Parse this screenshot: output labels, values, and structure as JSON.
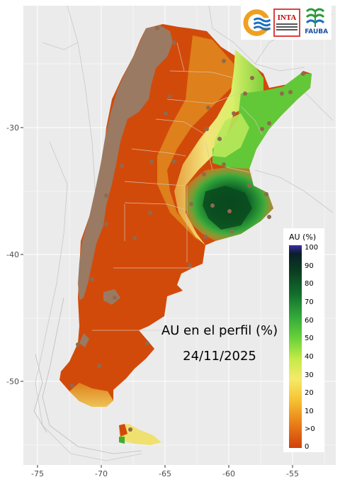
{
  "map": {
    "title_line1": "AU en el perfil (%)",
    "title_line2": "24/11/2025",
    "x_ticks": [
      "-75",
      "-70",
      "-65",
      "-60",
      "-55"
    ],
    "y_ticks": [
      "-30",
      "-40",
      "-50"
    ],
    "colors": {
      "panel_bg": "#ebebeb",
      "grid": "#ffffff",
      "border": "#c0c0c0",
      "red": "#d24a0a",
      "orange": "#e08a1e",
      "yellow": "#f2d86a",
      "lightgreen": "#b8e85a",
      "green": "#3fae2a",
      "darkgreen": "#0a5a22",
      "grey": "#9a7a62",
      "station": "#8f6a4e"
    }
  },
  "legend": {
    "title": "AU (%)",
    "labels": [
      "100",
      "90",
      "80",
      "70",
      "60",
      "50",
      "40",
      "30",
      "20",
      "10",
      ">0",
      "0"
    ]
  },
  "logos": {
    "inta": "INTA",
    "fauba": "FAUBA"
  }
}
